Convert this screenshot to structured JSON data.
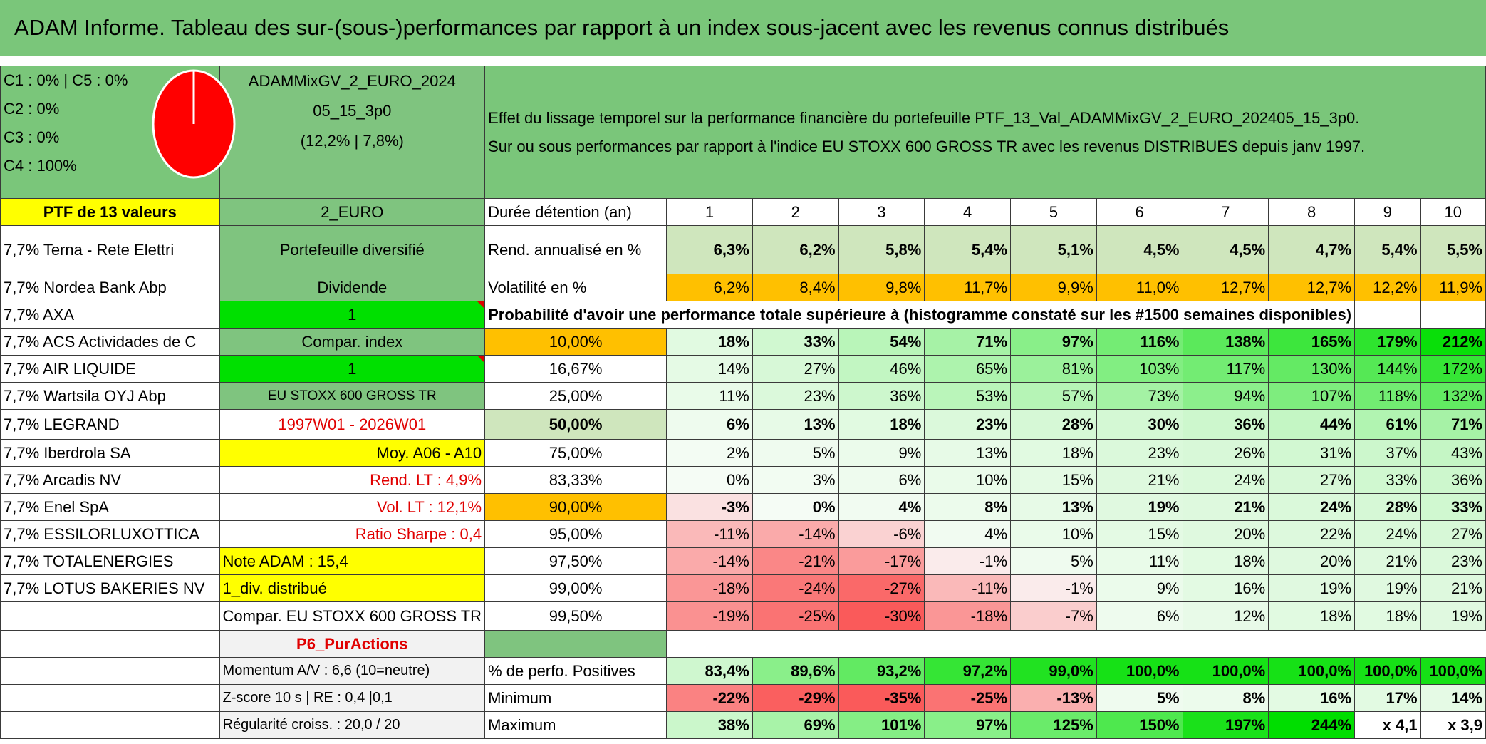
{
  "title": "ADAM Informe. Tableau des sur-(sous-)performances par rapport à un index sous-jacent avec les revenus connus distribués",
  "classes": [
    "C1 : 0% | C5 : 0%",
    "C2 : 0%",
    "C3 : 0%",
    "C4 : 100%"
  ],
  "pie": {
    "slices": [
      {
        "label": "C4",
        "value": 100,
        "color": "#ff0000"
      }
    ]
  },
  "portfolio": {
    "name_line1": "ADAMMixGV_2_EURO_2024",
    "name_line2": "05_15_3p0",
    "name_line3": "(12,2% | 7,8%)"
  },
  "effet": {
    "line1": "Effet du lissage temporel sur la performance financière du portefeuille PTF_13_Val_ADAMMixGV_2_EURO_202405_15_3p0.",
    "line2": "Sur ou sous performances par rapport à l'indice EU STOXX 600 GROSS TR avec les revenus DISTRIBUES depuis janv 1997."
  },
  "ptf_header": "PTF de 13 valeurs",
  "holdings": [
    "7,7% Terna - Rete Elettri",
    "7,7% Nordea Bank Abp",
    "7,7% AXA",
    "7,7% ACS Actividades de C",
    "7,7% AIR LIQUIDE",
    "7,7% Wartsila OYJ Abp",
    "7,7% LEGRAND",
    "7,7% Iberdrola SA",
    "7,7% Arcadis NV",
    "7,7% Enel SpA",
    "7,7% ESSILORLUXOTTICA",
    "7,7% TOTALENERGIES",
    "7,7% LOTUS BAKERIES NV"
  ],
  "info": {
    "euro": "2_EURO",
    "type": "Portefeuille diversifié",
    "dividende": "Dividende",
    "v1": "1",
    "compar_index": "Compar. index",
    "v2": "1",
    "index_name": "EU STOXX 600 GROSS TR",
    "period": "1997W01 - 2026W01",
    "moy": "Moy. A06 - A10",
    "rend_lt": "Rend. LT : 4,9%",
    "vol_lt": "Vol. LT : 12,1%",
    "sharpe": "Ratio Sharpe : 0,4",
    "note": "Note ADAM : 15,4",
    "div": "1_div. distribué",
    "compar_full": "Compar. EU STOXX 600 GROSS TR",
    "p6": "P6_PurActions",
    "momentum": "Momentum A/V : 6,6 (10=neutre)",
    "zscore": "Z-score 10 s | RE : 0,4 |0,1",
    "regularite": "Régularité croiss. : 20,0 / 20"
  },
  "labels": {
    "duree": "Durée détention (an)",
    "rend": "Rend. annualisé en %",
    "vol": "Volatilité en %",
    "prob": "Probabilité d'avoir une performance totale supérieure à (histogramme constaté sur les #1500 semaines disponibles)",
    "pos": "% de perfo. Positives",
    "min": "Minimum",
    "max": "Maximum"
  },
  "years": [
    "1",
    "2",
    "3",
    "4",
    "5",
    "6",
    "7",
    "8",
    "9",
    "10"
  ],
  "rend": [
    "6,3%",
    "6,2%",
    "5,8%",
    "5,4%",
    "5,1%",
    "4,5%",
    "4,5%",
    "4,7%",
    "5,4%",
    "5,5%"
  ],
  "vol": [
    "6,2%",
    "8,4%",
    "9,8%",
    "11,7%",
    "9,9%",
    "11,0%",
    "12,7%",
    "12,7%",
    "12,2%",
    "11,9%"
  ],
  "quantiles": [
    {
      "p": "10,00%",
      "vals": [
        "18%",
        "33%",
        "54%",
        "71%",
        "97%",
        "116%",
        "138%",
        "165%",
        "179%",
        "212%"
      ]
    },
    {
      "p": "16,67%",
      "vals": [
        "14%",
        "27%",
        "46%",
        "65%",
        "81%",
        "103%",
        "117%",
        "130%",
        "144%",
        "172%"
      ]
    },
    {
      "p": "25,00%",
      "vals": [
        "11%",
        "23%",
        "36%",
        "53%",
        "57%",
        "73%",
        "94%",
        "107%",
        "118%",
        "132%"
      ]
    },
    {
      "p": "50,00%",
      "vals": [
        "6%",
        "13%",
        "18%",
        "23%",
        "28%",
        "30%",
        "36%",
        "44%",
        "61%",
        "71%"
      ]
    },
    {
      "p": "75,00%",
      "vals": [
        "2%",
        "5%",
        "9%",
        "13%",
        "18%",
        "23%",
        "26%",
        "31%",
        "37%",
        "43%"
      ]
    },
    {
      "p": "83,33%",
      "vals": [
        "0%",
        "3%",
        "6%",
        "10%",
        "15%",
        "21%",
        "24%",
        "27%",
        "33%",
        "36%"
      ]
    },
    {
      "p": "90,00%",
      "vals": [
        "-3%",
        "0%",
        "4%",
        "8%",
        "13%",
        "19%",
        "21%",
        "24%",
        "28%",
        "33%"
      ]
    },
    {
      "p": "95,00%",
      "vals": [
        "-11%",
        "-14%",
        "-6%",
        "4%",
        "10%",
        "15%",
        "20%",
        "22%",
        "24%",
        "27%"
      ]
    },
    {
      "p": "97,50%",
      "vals": [
        "-14%",
        "-21%",
        "-17%",
        "-1%",
        "5%",
        "11%",
        "18%",
        "20%",
        "21%",
        "23%"
      ]
    },
    {
      "p": "99,00%",
      "vals": [
        "-18%",
        "-24%",
        "-27%",
        "-11%",
        "-1%",
        "9%",
        "16%",
        "19%",
        "19%",
        "21%"
      ]
    },
    {
      "p": "99,50%",
      "vals": [
        "-19%",
        "-25%",
        "-30%",
        "-18%",
        "-7%",
        "6%",
        "12%",
        "18%",
        "18%",
        "19%"
      ]
    }
  ],
  "positives": [
    "83,4%",
    "89,6%",
    "93,2%",
    "97,2%",
    "99,0%",
    "100,0%",
    "100,0%",
    "100,0%",
    "100,0%",
    "100,0%"
  ],
  "minimum": [
    "-22%",
    "-29%",
    "-35%",
    "-25%",
    "-13%",
    "5%",
    "8%",
    "16%",
    "17%",
    "14%"
  ],
  "maximum": [
    "38%",
    "69%",
    "101%",
    "97%",
    "125%",
    "150%",
    "197%",
    "244%",
    "x 4,1",
    "x 3,9"
  ],
  "colors": {
    "banner": "#7ac67a",
    "yellow": "#ffff00",
    "orange": "#ffc000",
    "bright_green": "#00e000",
    "red_text": "#e00000"
  }
}
